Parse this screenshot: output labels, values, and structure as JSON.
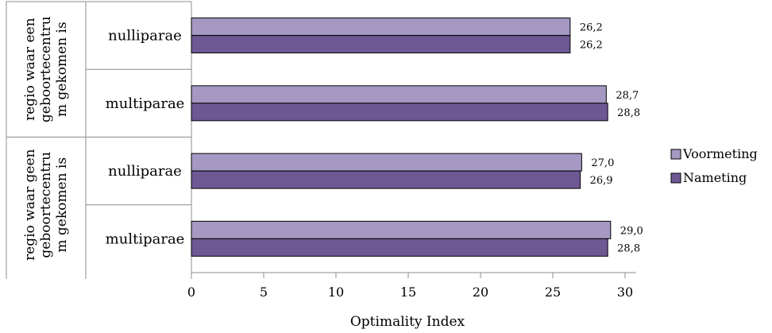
{
  "chart_data": {
    "type": "bar",
    "orientation": "horizontal",
    "title": "",
    "xlabel": "Optimality Index",
    "ylabel": "",
    "xlim": [
      0,
      30
    ],
    "xticks": [
      0,
      5,
      10,
      15,
      20,
      25,
      30
    ],
    "grid": false,
    "legend_position": "right",
    "groups": [
      {
        "label_lines": [
          "regio waar een",
          "geboortecentru",
          "m gekomen is"
        ],
        "categories": [
          "nulliparae",
          "multiparae"
        ]
      },
      {
        "label_lines": [
          "regio waar geen",
          "geboortecentru",
          "m gekomen is"
        ],
        "categories": [
          "nulliparae",
          "multiparae"
        ]
      }
    ],
    "series": [
      {
        "name": "Voormeting",
        "color": "#a598c3",
        "values": [
          26.2,
          28.7,
          27.0,
          29.0
        ],
        "labels": [
          "26,2",
          "28,7",
          "27,0",
          "29,0"
        ]
      },
      {
        "name": "Nameting",
        "color": "#6e5894",
        "values": [
          26.2,
          28.8,
          26.9,
          28.8
        ],
        "labels": [
          "26,2",
          "28,8",
          "26,9",
          "28,8"
        ]
      }
    ]
  }
}
